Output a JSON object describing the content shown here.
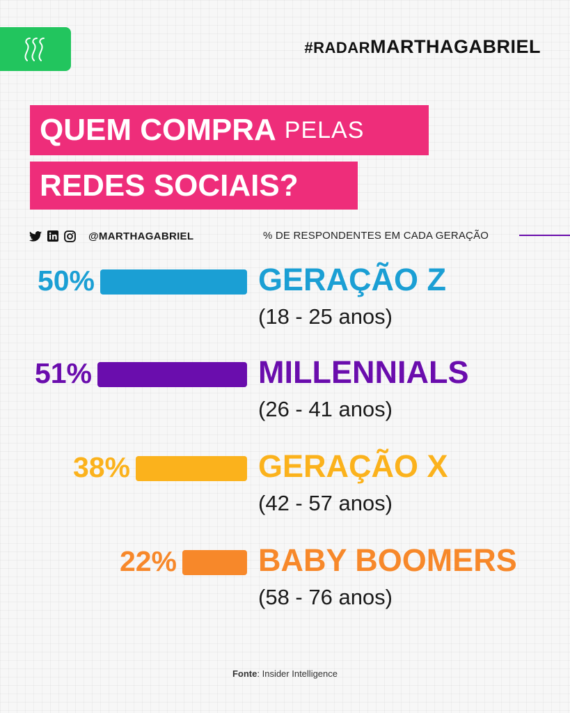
{
  "header": {
    "hashtag_prefix": "#RADAR",
    "hashtag_main": "MARTHAGABRIEL"
  },
  "title": {
    "line1_bold": "QUEM COMPRA",
    "line1_light": "PELAS",
    "line2_bold": "REDES SOCIAIS?"
  },
  "social": {
    "icons": [
      "twitter-icon",
      "linkedin-icon",
      "instagram-icon"
    ],
    "handle": "@MARTHAGABRIEL"
  },
  "legend": {
    "label": "% DE RESPONDENTES EM CADA GERAÇÃO",
    "color": "#6a0dad"
  },
  "chart_data": {
    "type": "bar",
    "orientation": "horizontal",
    "categories": [
      "GERAÇÃO Z",
      "MILLENNIALS",
      "GERAÇÃO X",
      "BABY BOOMERS"
    ],
    "age_ranges": [
      "(18 - 25 anos)",
      "(26 - 41 anos)",
      "(42 - 57 anos)",
      "(58 - 76 anos)"
    ],
    "values": [
      50,
      51,
      38,
      22
    ],
    "value_labels": [
      "50%",
      "51%",
      "38%",
      "22%"
    ],
    "colors": [
      "#1b9fd4",
      "#6a0dad",
      "#fbb21c",
      "#f7882a"
    ],
    "unit": "%",
    "grid": false
  },
  "source": {
    "label": "Fonte",
    "text": ": Insider Intelligence"
  }
}
